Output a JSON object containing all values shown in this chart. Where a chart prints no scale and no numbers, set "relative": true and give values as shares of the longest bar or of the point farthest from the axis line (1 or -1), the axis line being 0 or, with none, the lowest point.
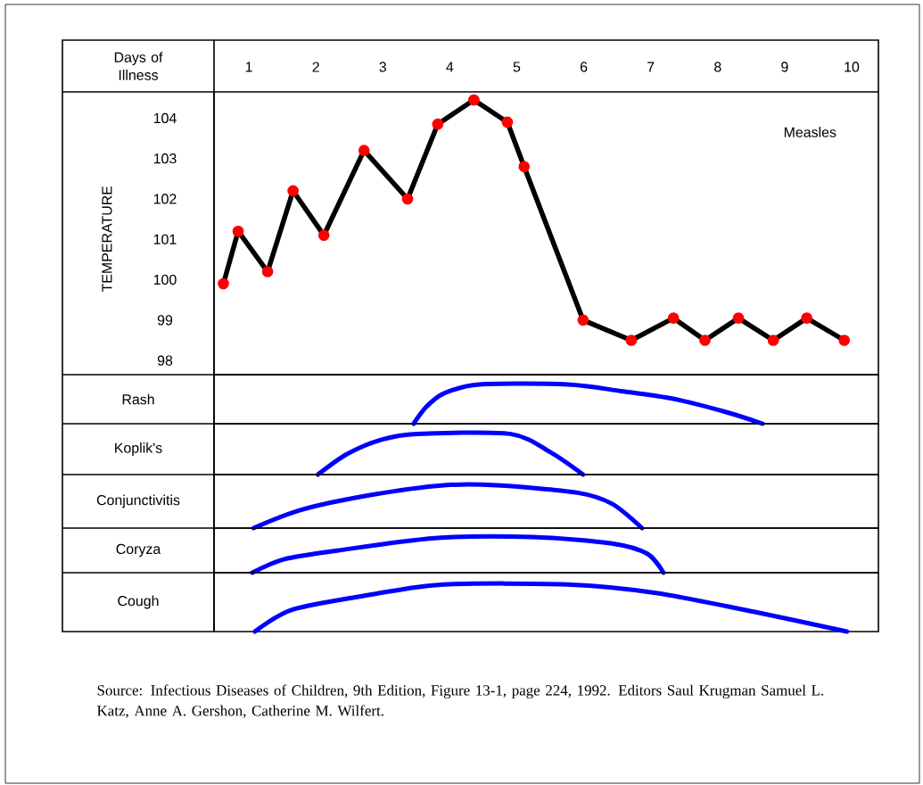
{
  "chart_data": [
    {
      "type": "line",
      "xlabel": "Days of Illness",
      "ylabel": "TEMPERATURE",
      "x": [
        0.62,
        0.84,
        1.28,
        1.66,
        2.12,
        2.72,
        3.37,
        3.82,
        4.36,
        4.86,
        5.11,
        5.99,
        6.71,
        7.34,
        7.81,
        8.31,
        8.83,
        9.33,
        9.89
      ],
      "values": [
        99.9,
        101.2,
        100.2,
        102.2,
        101.1,
        103.2,
        102.0,
        103.85,
        104.45,
        103.9,
        102.8,
        99.0,
        98.5,
        99.05,
        98.5,
        99.05,
        98.5,
        99.05,
        98.5
      ],
      "color": "#000000",
      "marker": "circle",
      "xlim": [
        0.48,
        10.4
      ],
      "ylim": [
        97.65,
        104.65
      ],
      "xticks": [
        1,
        2,
        3,
        4,
        5,
        6,
        7,
        8,
        9,
        10
      ],
      "yticks": [
        98,
        99,
        100,
        101,
        102,
        103,
        104
      ],
      "annotations": [
        "Measles",
        "Source:  Infectious Diseases of Children, 9th Edition, Figure 13-1, page 224, 1992. Editors Saul Krugman Samuel L. Katz, Anne A. Gershon, Catherine M. Wilfert."
      ]
    },
    {
      "type": "line",
      "ylabel": "Rash",
      "relative": true,
      "tick_labels": false,
      "xlim": [
        0.48,
        10.4
      ],
      "xticks": [
        1,
        2,
        3,
        4,
        5,
        6,
        7,
        8,
        9,
        10
      ],
      "color": "#0000ff",
      "x": [
        3.46,
        3.65,
        3.91,
        4.44,
        5.76,
        6.56,
        7.35,
        8.14,
        8.67
      ],
      "values": [
        0,
        0.43,
        0.77,
        1,
        1,
        0.83,
        0.63,
        0.29,
        0
      ]
    },
    {
      "type": "line",
      "ylabel": "Koplik's",
      "relative": true,
      "tick_labels": false,
      "xlim": [
        0.48,
        10.4
      ],
      "xticks": [
        1,
        2,
        3,
        4,
        5,
        6,
        7,
        8,
        9,
        10
      ],
      "color": "#0000ff",
      "x": [
        2.03,
        2.46,
        2.98,
        3.51,
        4.9,
        5.5,
        5.99
      ],
      "values": [
        0,
        0.5,
        0.86,
        1,
        1,
        0.55,
        0
      ]
    },
    {
      "type": "line",
      "ylabel": "Conjunctivitis",
      "relative": true,
      "tick_labels": false,
      "xlim": [
        0.48,
        10.4
      ],
      "xticks": [
        1,
        2,
        3,
        4,
        5,
        6,
        7,
        8,
        9,
        10
      ],
      "color": "#0000ff",
      "x": [
        1.07,
        1.79,
        2.85,
        3.91,
        4.7,
        5.89,
        6.42,
        6.87
      ],
      "values": [
        0,
        0.43,
        0.78,
        1,
        1,
        0.83,
        0.57,
        0
      ]
    },
    {
      "type": "line",
      "ylabel": "Coryza",
      "relative": true,
      "tick_labels": false,
      "xlim": [
        0.48,
        10.4
      ],
      "xticks": [
        1,
        2,
        3,
        4,
        5,
        6,
        7,
        8,
        9,
        10
      ],
      "color": "#0000ff",
      "x": [
        1.05,
        1.53,
        2.32,
        3.78,
        5.23,
        6.42,
        6.95,
        7.19
      ],
      "values": [
        0,
        0.38,
        0.62,
        0.97,
        1,
        0.82,
        0.53,
        0
      ]
    },
    {
      "type": "line",
      "ylabel": "Cough",
      "relative": true,
      "tick_labels": false,
      "xlim": [
        0.48,
        10.4
      ],
      "xticks": [
        1,
        2,
        3,
        4,
        5,
        6,
        7,
        8,
        9,
        10
      ],
      "color": "#0000ff",
      "x": [
        1.09,
        1.66,
        2.85,
        3.91,
        5.76,
        7.08,
        8.54,
        9.93
      ],
      "values": [
        0,
        0.47,
        0.79,
        1,
        1,
        0.82,
        0.42,
        0
      ]
    }
  ]
}
